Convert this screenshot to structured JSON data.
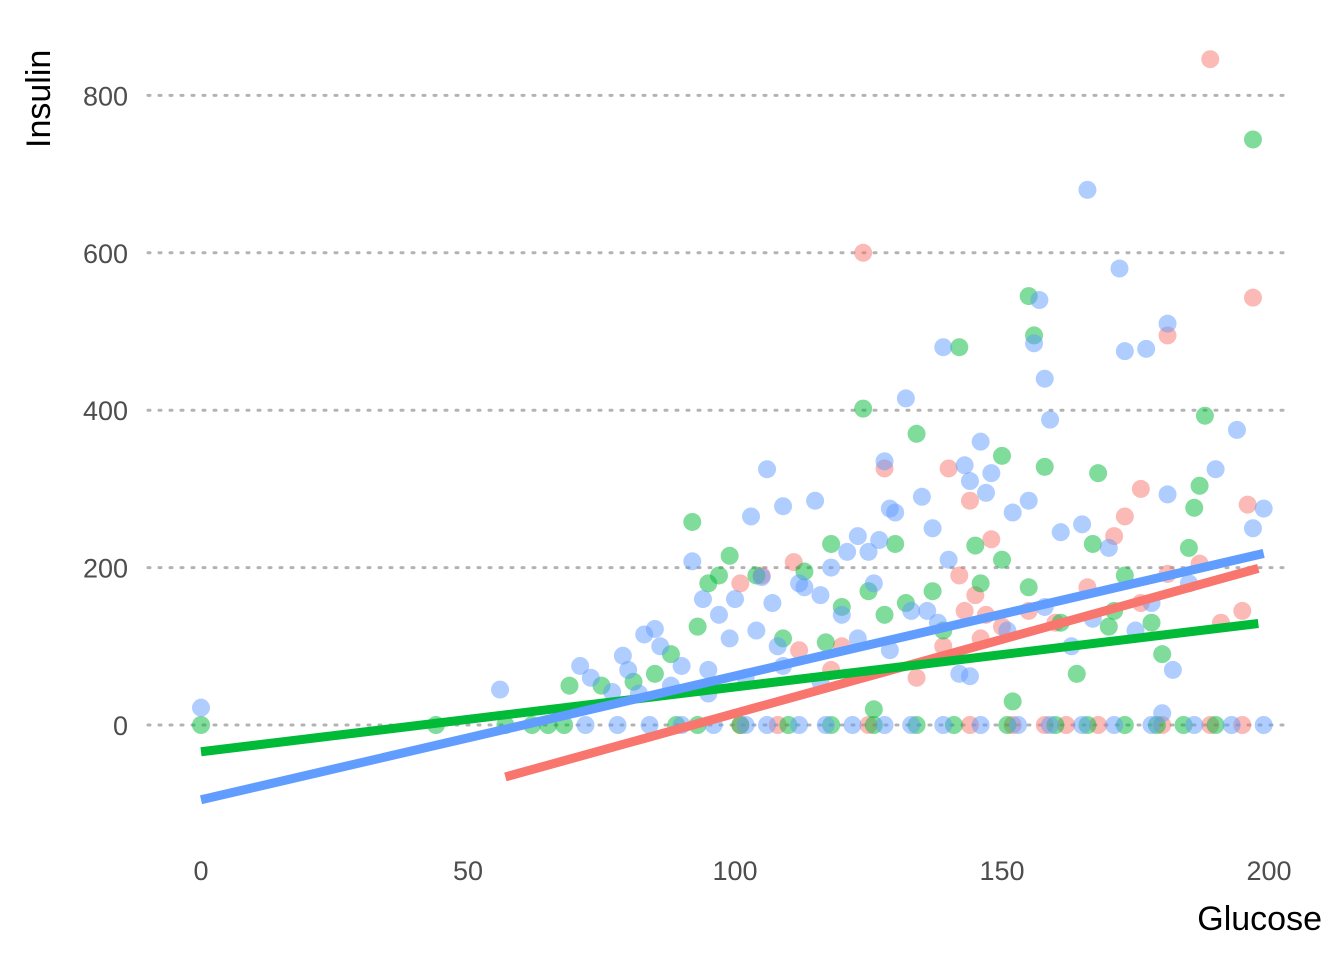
{
  "chart_data": {
    "type": "scatter",
    "xlabel": "Glucose",
    "ylabel": "Insulin",
    "xlim": [
      0,
      200
    ],
    "ylim": [
      -150,
      880
    ],
    "xticks": [
      0,
      50,
      100,
      150,
      200
    ],
    "yticks": [
      0,
      200,
      400,
      600,
      800
    ],
    "grid": "horizontal dotted",
    "legend": "none",
    "series": [
      {
        "color": "#F8766D",
        "points": [
          [
            124,
            600
          ],
          [
            189,
            846
          ],
          [
            197,
            543
          ],
          [
            181,
            495
          ],
          [
            140,
            326
          ],
          [
            128,
            326
          ],
          [
            144,
            285
          ],
          [
            148,
            236
          ],
          [
            173,
            265
          ],
          [
            196,
            280
          ],
          [
            176,
            300
          ],
          [
            171,
            240
          ],
          [
            111,
            207
          ],
          [
            142,
            190
          ],
          [
            105,
            190
          ],
          [
            101,
            180
          ],
          [
            145,
            165
          ],
          [
            143,
            145
          ],
          [
            147,
            140
          ],
          [
            146,
            110
          ],
          [
            134,
            60
          ],
          [
            160,
            130
          ],
          [
            166,
            175
          ],
          [
            176,
            155
          ],
          [
            181,
            192
          ],
          [
            187,
            205
          ],
          [
            195,
            145
          ],
          [
            191,
            130
          ],
          [
            150,
            125
          ],
          [
            120,
            100
          ],
          [
            112,
            95
          ],
          [
            118,
            70
          ],
          [
            139,
            100
          ],
          [
            155,
            145
          ],
          [
            101,
            0
          ],
          [
            108,
            0
          ],
          [
            125,
            0
          ],
          [
            144,
            0
          ],
          [
            152,
            0
          ],
          [
            158,
            0
          ],
          [
            162,
            0
          ],
          [
            168,
            0
          ],
          [
            180,
            0
          ],
          [
            189,
            0
          ],
          [
            195,
            0
          ]
        ],
        "fit": [
          [
            57,
            -66
          ],
          [
            198,
            199
          ]
        ]
      },
      {
        "color": "#00BA38",
        "points": [
          [
            0,
            0
          ],
          [
            44,
            0
          ],
          [
            57,
            0
          ],
          [
            62,
            0
          ],
          [
            65,
            0
          ],
          [
            68,
            0
          ],
          [
            92,
            258
          ],
          [
            99,
            215
          ],
          [
            124,
            402
          ],
          [
            130,
            230
          ],
          [
            134,
            370
          ],
          [
            142,
            480
          ],
          [
            150,
            342
          ],
          [
            155,
            545
          ],
          [
            156,
            495
          ],
          [
            158,
            328
          ],
          [
            168,
            320
          ],
          [
            186,
            276
          ],
          [
            188,
            393
          ],
          [
            197,
            744
          ],
          [
            187,
            304
          ],
          [
            185,
            225
          ],
          [
            180,
            90
          ],
          [
            178,
            130
          ],
          [
            173,
            190
          ],
          [
            167,
            230
          ],
          [
            164,
            65
          ],
          [
            155,
            175
          ],
          [
            150,
            210
          ],
          [
            145,
            228
          ],
          [
            137,
            170
          ],
          [
            128,
            140
          ],
          [
            126,
            20
          ],
          [
            120,
            150
          ],
          [
            118,
            230
          ],
          [
            113,
            195
          ],
          [
            109,
            110
          ],
          [
            104,
            190
          ],
          [
            97,
            190
          ],
          [
            93,
            125
          ],
          [
            88,
            90
          ],
          [
            85,
            65
          ],
          [
            81,
            55
          ],
          [
            75,
            50
          ],
          [
            69,
            50
          ],
          [
            89,
            0
          ],
          [
            93,
            0
          ],
          [
            101,
            0
          ],
          [
            110,
            0
          ],
          [
            118,
            0
          ],
          [
            126,
            0
          ],
          [
            134,
            0
          ],
          [
            141,
            0
          ],
          [
            151,
            0
          ],
          [
            160,
            0
          ],
          [
            166,
            0
          ],
          [
            173,
            0
          ],
          [
            179,
            0
          ],
          [
            184,
            0
          ],
          [
            190,
            0
          ],
          [
            152,
            30
          ],
          [
            171,
            145
          ],
          [
            146,
            180
          ],
          [
            132,
            155
          ],
          [
            117,
            105
          ],
          [
            95,
            180
          ],
          [
            125,
            170
          ],
          [
            139,
            120
          ],
          [
            161,
            130
          ],
          [
            170,
            125
          ]
        ],
        "fit": [
          [
            0,
            -34
          ],
          [
            198,
            129
          ]
        ]
      },
      {
        "color": "#619CFF",
        "points": [
          [
            0,
            22
          ],
          [
            56,
            45
          ],
          [
            71,
            75
          ],
          [
            79,
            88
          ],
          [
            83,
            115
          ],
          [
            85,
            122
          ],
          [
            92,
            208
          ],
          [
            94,
            160
          ],
          [
            97,
            140
          ],
          [
            100,
            160
          ],
          [
            103,
            265
          ],
          [
            105,
            188
          ],
          [
            106,
            325
          ],
          [
            107,
            155
          ],
          [
            109,
            278
          ],
          [
            113,
            175
          ],
          [
            115,
            285
          ],
          [
            118,
            200
          ],
          [
            121,
            220
          ],
          [
            123,
            240
          ],
          [
            125,
            220
          ],
          [
            127,
            235
          ],
          [
            128,
            335
          ],
          [
            129,
            275
          ],
          [
            130,
            270
          ],
          [
            132,
            415
          ],
          [
            135,
            290
          ],
          [
            137,
            250
          ],
          [
            139,
            480
          ],
          [
            140,
            210
          ],
          [
            143,
            330
          ],
          [
            144,
            310
          ],
          [
            146,
            360
          ],
          [
            147,
            295
          ],
          [
            148,
            320
          ],
          [
            152,
            270
          ],
          [
            155,
            285
          ],
          [
            156,
            485
          ],
          [
            157,
            540
          ],
          [
            158,
            440
          ],
          [
            159,
            388
          ],
          [
            161,
            245
          ],
          [
            165,
            255
          ],
          [
            166,
            680
          ],
          [
            170,
            225
          ],
          [
            172,
            580
          ],
          [
            173,
            475
          ],
          [
            177,
            478
          ],
          [
            181,
            510
          ],
          [
            181,
            293
          ],
          [
            190,
            325
          ],
          [
            194,
            375
          ],
          [
            197,
            250
          ],
          [
            199,
            275
          ],
          [
            182,
            70
          ],
          [
            180,
            15
          ],
          [
            163,
            100
          ],
          [
            158,
            150
          ],
          [
            142,
            65
          ],
          [
            144,
            62
          ],
          [
            138,
            130
          ],
          [
            133,
            145
          ],
          [
            126,
            180
          ],
          [
            120,
            140
          ],
          [
            116,
            165
          ],
          [
            112,
            180
          ],
          [
            108,
            100
          ],
          [
            104,
            120
          ],
          [
            99,
            110
          ],
          [
            95,
            70
          ],
          [
            90,
            75
          ],
          [
            86,
            100
          ],
          [
            82,
            40
          ],
          [
            77,
            42
          ],
          [
            73,
            60
          ],
          [
            80,
            70
          ],
          [
            88,
            50
          ],
          [
            95,
            40
          ],
          [
            102,
            60
          ],
          [
            109,
            75
          ],
          [
            116,
            55
          ],
          [
            123,
            110
          ],
          [
            129,
            95
          ],
          [
            136,
            145
          ],
          [
            151,
            120
          ],
          [
            167,
            135
          ],
          [
            175,
            120
          ],
          [
            178,
            155
          ],
          [
            185,
            180
          ],
          [
            72,
            0
          ],
          [
            78,
            0
          ],
          [
            84,
            0
          ],
          [
            90,
            0
          ],
          [
            96,
            0
          ],
          [
            102,
            0
          ],
          [
            106,
            0
          ],
          [
            112,
            0
          ],
          [
            117,
            0
          ],
          [
            122,
            0
          ],
          [
            128,
            0
          ],
          [
            133,
            0
          ],
          [
            139,
            0
          ],
          [
            146,
            0
          ],
          [
            153,
            0
          ],
          [
            159,
            0
          ],
          [
            165,
            0
          ],
          [
            171,
            0
          ],
          [
            178,
            0
          ],
          [
            186,
            0
          ],
          [
            193,
            0
          ],
          [
            199,
            0
          ]
        ],
        "fit": [
          [
            0,
            -95
          ],
          [
            199,
            218
          ]
        ]
      }
    ]
  }
}
